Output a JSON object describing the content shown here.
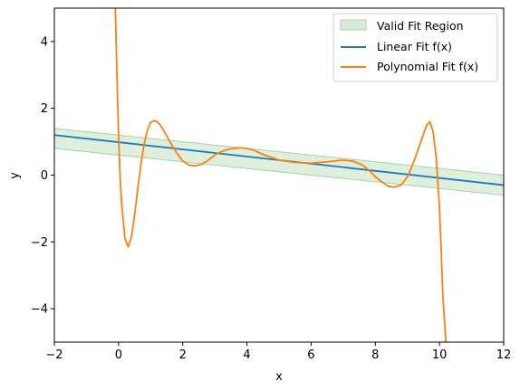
{
  "chart_data": {
    "type": "line",
    "title": "",
    "xlabel": "x",
    "ylabel": "y",
    "xlim": [
      -2,
      12
    ],
    "ylim": [
      -5,
      5
    ],
    "xticks": [
      -2,
      0,
      2,
      4,
      6,
      8,
      10,
      12
    ],
    "yticks": [
      -4,
      -2,
      0,
      2,
      4
    ],
    "xtick_labels": [
      "−2",
      "0",
      "2",
      "4",
      "6",
      "8",
      "10",
      "12"
    ],
    "ytick_labels": [
      "−4",
      "−2",
      "0",
      "2",
      "4"
    ],
    "grid": false,
    "legend_position": "top-right",
    "colors": {
      "band_fill": "#d8ecd8",
      "band_edge": "#a9d3a9",
      "linear": "#1f77b4",
      "polynomial": "#ff7f0e"
    },
    "legend": [
      {
        "key": "band",
        "label": "Valid Fit Region"
      },
      {
        "key": "linear",
        "label": "Linear Fit f(x)"
      },
      {
        "key": "polynomial",
        "label": "Polynomial Fit f(x)"
      }
    ],
    "band": {
      "name": "Valid Fit Region",
      "x": [
        -2,
        12
      ],
      "upper": [
        1.4,
        0.0
      ],
      "lower": [
        0.8,
        -0.6
      ]
    },
    "series": [
      {
        "name": "Linear Fit f(x)",
        "x": [
          -2,
          12
        ],
        "y": [
          1.2,
          -0.3
        ]
      },
      {
        "name": "Polynomial Fit f(x)",
        "x": [
          -0.1,
          -0.05,
          0.0,
          0.05,
          0.1,
          0.2,
          0.3,
          0.4,
          0.5,
          0.6,
          0.7,
          0.8,
          0.9,
          1.0,
          1.1,
          1.2,
          1.3,
          1.4,
          1.5,
          1.6,
          1.8,
          2.0,
          2.2,
          2.4,
          2.6,
          2.8,
          3.0,
          3.2,
          3.4,
          3.6,
          3.8,
          4.0,
          4.2,
          4.5,
          5.0,
          5.5,
          6.0,
          6.5,
          7.0,
          7.3,
          7.6,
          7.8,
          8.0,
          8.2,
          8.4,
          8.6,
          8.8,
          9.0,
          9.2,
          9.4,
          9.6,
          9.7,
          9.8,
          9.9,
          10.0,
          10.05,
          10.1,
          10.15,
          10.2
        ],
        "y": [
          5.0,
          3.0,
          1.2,
          -0.1,
          -0.9,
          -1.9,
          -2.15,
          -1.85,
          -1.2,
          -0.4,
          0.35,
          0.95,
          1.35,
          1.58,
          1.63,
          1.6,
          1.5,
          1.35,
          1.18,
          1.0,
          0.68,
          0.42,
          0.3,
          0.28,
          0.33,
          0.45,
          0.6,
          0.7,
          0.77,
          0.8,
          0.82,
          0.8,
          0.75,
          0.62,
          0.45,
          0.38,
          0.36,
          0.4,
          0.45,
          0.42,
          0.3,
          0.15,
          -0.05,
          -0.2,
          -0.33,
          -0.36,
          -0.3,
          -0.05,
          0.4,
          0.95,
          1.5,
          1.6,
          1.3,
          0.5,
          -1.0,
          -2.2,
          -3.5,
          -4.3,
          -5.0
        ]
      }
    ]
  }
}
